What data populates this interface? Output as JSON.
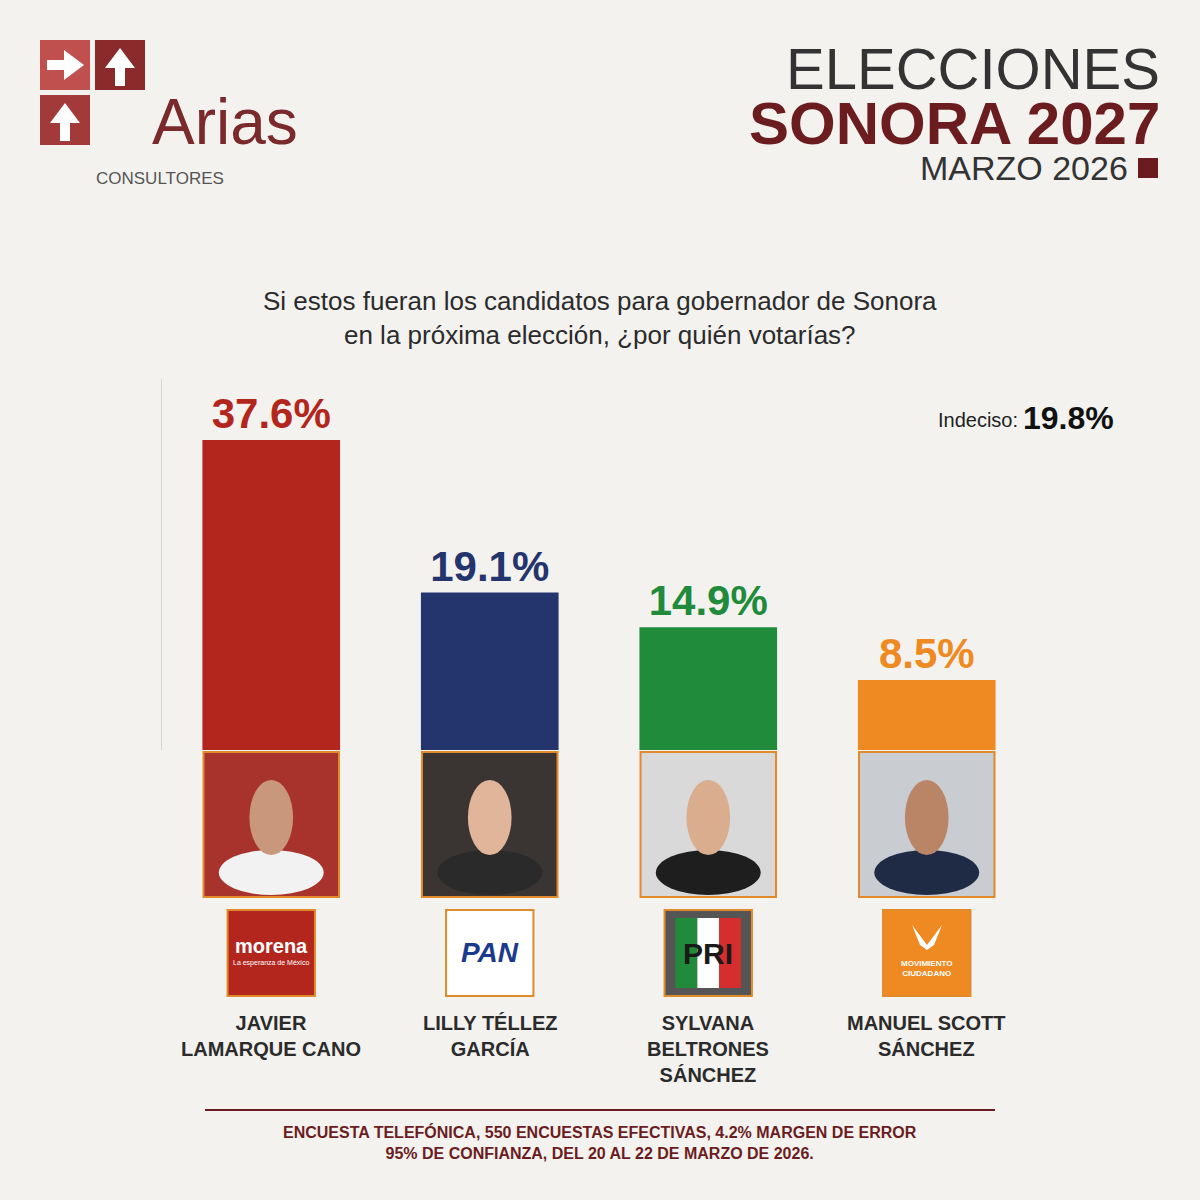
{
  "chart_data": {
    "type": "bar",
    "title": "ELECCIONES SONORA 2027",
    "subtitle": "MARZO 2026",
    "categories": [
      "JAVIER LAMARQUE CANO",
      "LILLY TÉLLEZ GARCÍA",
      "SYLVANA BELTRONES SÁNCHEZ",
      "MANUEL SCOTT SÁNCHEZ"
    ],
    "values": [
      37.6,
      19.1,
      14.9,
      8.5
    ],
    "value_labels": [
      "37.6%",
      "19.1%",
      "14.9%",
      "8.5%"
    ],
    "colors": [
      "#b3261e",
      "#24346d",
      "#1f8b3b",
      "#ef8a22"
    ],
    "data_labels": true,
    "ylim": [
      0,
      45
    ],
    "grid": false,
    "tick_labels": false,
    "parties": [
      {
        "name": "morena",
        "tagline": "La esperanza de México"
      },
      {
        "name": "PAN"
      },
      {
        "name": "PRI"
      },
      {
        "name": "MOVIMIENTO CIUDADANO"
      }
    ],
    "annotations": {
      "question": "Si estos fueran los candidatos para gobernador de Sonora en la próxima elección, ¿por quién votarías?",
      "undecided": {
        "text": "Indeciso:",
        "value": 19.8,
        "label": "19.8%"
      },
      "note": "ENCUESTA TELEFÓNICA, 550 ENCUESTAS EFECTIVAS, 4.2% MARGEN DE ERROR 95% DE CONFIANZA, DEL 20 AL 22 DE MARZO DE 2026."
    },
    "brand": {
      "name": "Arias",
      "tagline": "CONSULTORES"
    }
  }
}
